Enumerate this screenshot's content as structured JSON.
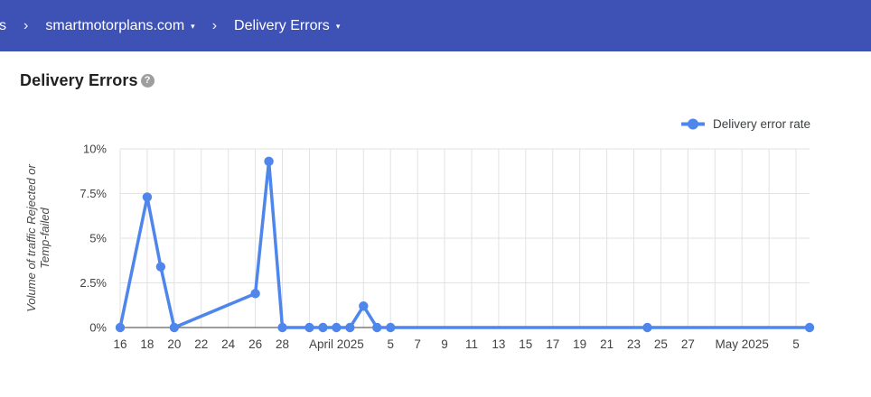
{
  "header": {
    "breadcrumb": {
      "cropped_item": "s",
      "separator": "›",
      "domain": "smartmotorplans.com",
      "report": "Delivery Errors",
      "caret": "▾"
    },
    "bg_color": "#3e51b5"
  },
  "page": {
    "title": "Delivery Errors",
    "help": "?"
  },
  "chart_data": {
    "type": "line",
    "title": "Delivery Errors",
    "xlabel": "",
    "ylabel": "Volume of traffic Rejected or Temp-failed",
    "ylabel_lines": [
      "Volume of traffic Rejected or",
      "Temp-failed"
    ],
    "ylim": [
      0,
      10
    ],
    "grid": true,
    "legend_position": "top-right",
    "y_ticks": [
      {
        "value": 10,
        "label": "10%"
      },
      {
        "value": 7.5,
        "label": "7.5%"
      },
      {
        "value": 5,
        "label": "5%"
      },
      {
        "value": 2.5,
        "label": "2.5%"
      },
      {
        "value": 0,
        "label": "0%"
      }
    ],
    "x_domain_days": 51,
    "x_gridline_step_days": 2,
    "x_ticks": [
      {
        "day": 0,
        "label": "16"
      },
      {
        "day": 2,
        "label": "18"
      },
      {
        "day": 4,
        "label": "20"
      },
      {
        "day": 6,
        "label": "22"
      },
      {
        "day": 8,
        "label": "24"
      },
      {
        "day": 10,
        "label": "26"
      },
      {
        "day": 12,
        "label": "28"
      },
      {
        "day": 16,
        "label": "April 2025"
      },
      {
        "day": 20,
        "label": "5"
      },
      {
        "day": 22,
        "label": "7"
      },
      {
        "day": 24,
        "label": "9"
      },
      {
        "day": 26,
        "label": "11"
      },
      {
        "day": 28,
        "label": "13"
      },
      {
        "day": 30,
        "label": "15"
      },
      {
        "day": 32,
        "label": "17"
      },
      {
        "day": 34,
        "label": "19"
      },
      {
        "day": 36,
        "label": "21"
      },
      {
        "day": 38,
        "label": "23"
      },
      {
        "day": 40,
        "label": "25"
      },
      {
        "day": 42,
        "label": "27"
      },
      {
        "day": 46,
        "label": "May 2025"
      },
      {
        "day": 50,
        "label": "5"
      }
    ],
    "series": [
      {
        "name": "Delivery error rate",
        "color": "#4e86ec",
        "points": [
          {
            "date": "Mar 16",
            "day": 0,
            "value": 0
          },
          {
            "date": "Mar 18",
            "day": 2,
            "value": 7.3
          },
          {
            "date": "Mar 19",
            "day": 3,
            "value": 3.4
          },
          {
            "date": "Mar 20",
            "day": 4,
            "value": 0
          },
          {
            "date": "Mar 26",
            "day": 10,
            "value": 1.9
          },
          {
            "date": "Mar 27",
            "day": 11,
            "value": 9.3
          },
          {
            "date": "Mar 28",
            "day": 12,
            "value": 0
          },
          {
            "date": "Mar 30",
            "day": 14,
            "value": 0
          },
          {
            "date": "Mar 31",
            "day": 15,
            "value": 0
          },
          {
            "date": "Apr 1",
            "day": 16,
            "value": 0
          },
          {
            "date": "Apr 2",
            "day": 17,
            "value": 0
          },
          {
            "date": "Apr 3",
            "day": 18,
            "value": 1.2
          },
          {
            "date": "Apr 4",
            "day": 19,
            "value": 0
          },
          {
            "date": "Apr 5",
            "day": 20,
            "value": 0
          },
          {
            "date": "Apr 24",
            "day": 39,
            "value": 0
          },
          {
            "date": "May 6",
            "day": 51,
            "value": 0
          }
        ]
      }
    ],
    "colors": {
      "grid": "#e2e2e2",
      "axis": "#3b3b3b",
      "tick_text": "#424242",
      "axis_title": "#4a4a4a"
    }
  }
}
